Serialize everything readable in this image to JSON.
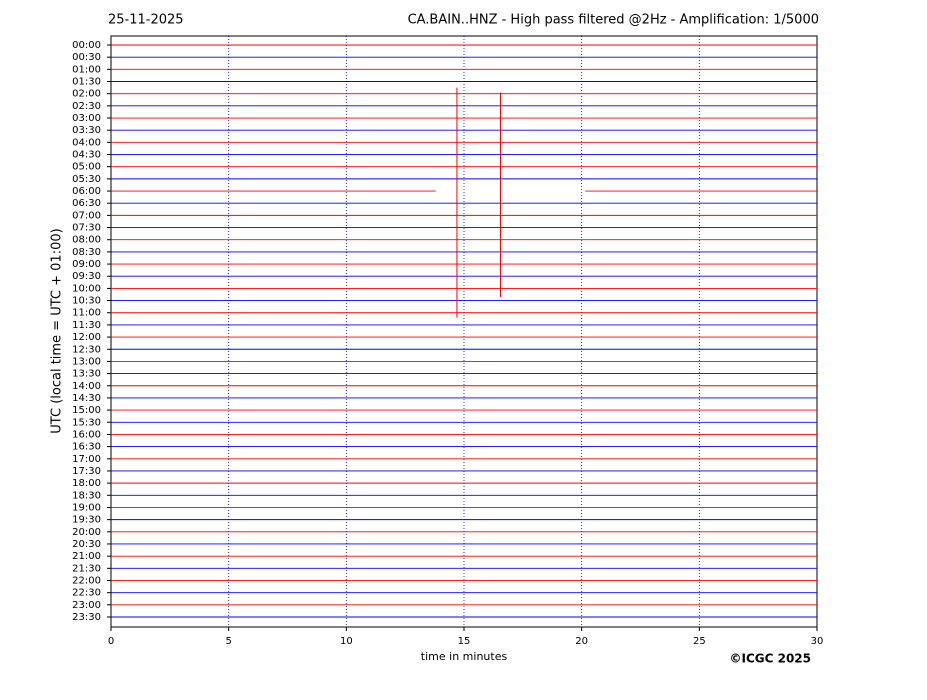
{
  "chart_data": {
    "type": "helicorder",
    "title": "25-11-2025",
    "subtitle": "CA.BAIN..HNZ - High pass filtered @2Hz - Amplification: 1/5000",
    "ylabel": "UTC (local time = UTC + 01:00)",
    "xlabel": "time in minutes",
    "credit": "©ICGC 2025",
    "categories": [
      "00:00",
      "00:30",
      "01:00",
      "01:30",
      "02:00",
      "02:30",
      "03:00",
      "03:30",
      "04:00",
      "04:30",
      "05:00",
      "05:30",
      "06:00",
      "06:30",
      "07:00",
      "07:30",
      "08:00",
      "08:30",
      "09:00",
      "09:30",
      "10:00",
      "10:30",
      "11:00",
      "11:30",
      "12:00",
      "12:30",
      "13:00",
      "13:30",
      "14:00",
      "14:30",
      "15:00",
      "15:30",
      "16:00",
      "16:30",
      "17:00",
      "17:30",
      "18:00",
      "18:30",
      "19:00",
      "19:30",
      "20:00",
      "20:30",
      "21:00",
      "21:30",
      "22:00",
      "22:30",
      "23:00",
      "23:30"
    ],
    "colors": [
      "#ff0000",
      "#0000ff"
    ],
    "xlim": [
      0,
      30
    ],
    "xticks": [
      0,
      5,
      10,
      15,
      20,
      25,
      30
    ],
    "grid": "x",
    "spikes": [
      {
        "x": 14.7,
        "range": [
          1.75,
          11.2
        ]
      },
      {
        "x": 16.55,
        "range": [
          1.95,
          10.35
        ]
      }
    ],
    "gaps": [
      {
        "row": 12,
        "x": [
          13.8,
          20.15
        ]
      }
    ]
  }
}
